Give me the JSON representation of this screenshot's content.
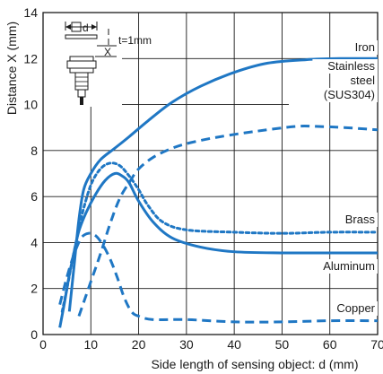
{
  "chart_data": {
    "type": "line",
    "xlabel": "Side length of sensing object: d (mm)",
    "ylabel": "Distance X (mm)",
    "xlim": [
      0,
      70
    ],
    "ylim": [
      0,
      14
    ],
    "x_ticks": [
      "0",
      "10",
      "20",
      "30",
      "40",
      "50",
      "60",
      "70"
    ],
    "y_ticks": [
      "0",
      "2",
      "4",
      "6",
      "8",
      "10",
      "12",
      "14"
    ],
    "grid": true,
    "line_color": "#1f77c4",
    "series": [
      {
        "name": "Iron",
        "style": "solid",
        "label_lines": [
          "Iron"
        ],
        "x": [
          5.5,
          6.5,
          7.5,
          8.5,
          10,
          12,
          15,
          18,
          22,
          27,
          33,
          40,
          47,
          55,
          62,
          70
        ],
        "y": [
          1.0,
          3.0,
          5.0,
          6.3,
          7.0,
          7.6,
          8.1,
          8.6,
          9.3,
          10.1,
          10.8,
          11.4,
          11.8,
          11.95,
          12.0,
          12.0
        ]
      },
      {
        "name": "Stainless steel (SUS304)",
        "style": "dashed",
        "label_lines": [
          "Stainless",
          "steel",
          "(SUS304)"
        ],
        "x": [
          7.5,
          8.5,
          10,
          12,
          14,
          16,
          18,
          20,
          23,
          27,
          31,
          37,
          45,
          53,
          57,
          63,
          70
        ],
        "y": [
          0.8,
          1.4,
          2.3,
          3.5,
          4.8,
          5.9,
          6.6,
          7.2,
          7.7,
          8.1,
          8.35,
          8.6,
          8.85,
          9.05,
          9.05,
          9.0,
          8.9
        ]
      },
      {
        "name": "Brass",
        "style": "dotted",
        "label_lines": [
          "Brass"
        ],
        "x": [
          4,
          5,
          6,
          7,
          8,
          10,
          12,
          14,
          16,
          18,
          20,
          22,
          25,
          30,
          40,
          50,
          60,
          70
        ],
        "y": [
          1.0,
          2.0,
          3.1,
          4.1,
          5.1,
          6.5,
          7.2,
          7.45,
          7.35,
          6.9,
          6.3,
          5.6,
          4.9,
          4.55,
          4.45,
          4.4,
          4.45,
          4.45
        ]
      },
      {
        "name": "Aluminum",
        "style": "solid",
        "label_lines": [
          "Aluminum"
        ],
        "x": [
          3.5,
          4.5,
          5.5,
          6.5,
          7.5,
          9,
          11,
          13,
          15,
          16.5,
          18,
          20,
          23,
          27,
          33,
          40,
          50,
          60,
          70
        ],
        "y": [
          0.3,
          1.4,
          2.6,
          3.6,
          4.5,
          5.3,
          6.1,
          6.7,
          7.0,
          6.9,
          6.6,
          5.8,
          4.9,
          4.2,
          3.8,
          3.6,
          3.55,
          3.55,
          3.55
        ]
      },
      {
        "name": "Copper",
        "style": "dashed",
        "label_lines": [
          "Copper"
        ],
        "x": [
          3.5,
          5,
          6.5,
          8,
          9.5,
          11,
          12.5,
          14,
          15.5,
          17,
          18.5,
          20,
          23,
          30,
          40,
          50,
          60,
          70
        ],
        "y": [
          1.3,
          2.5,
          3.5,
          4.2,
          4.4,
          4.3,
          3.9,
          3.3,
          2.5,
          1.6,
          1.0,
          0.8,
          0.65,
          0.65,
          0.55,
          0.55,
          0.6,
          0.6
        ]
      }
    ],
    "inset": {
      "square_label": "d",
      "thickness_label": "t=1mm",
      "distance_label": "X"
    }
  }
}
